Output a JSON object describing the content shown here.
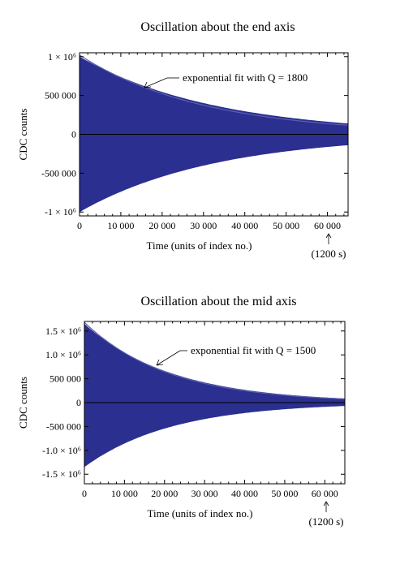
{
  "chart_data": [
    {
      "type": "area",
      "title": "Oscillation about the end axis",
      "xlabel": "Time (units of index no.)",
      "ylabel": "CDC counts",
      "xlim": [
        0,
        65000
      ],
      "ylim": [
        -1050000,
        1050000
      ],
      "x_ticks": [
        {
          "v": 0,
          "label": "0"
        },
        {
          "v": 10000,
          "label": "10 000"
        },
        {
          "v": 20000,
          "label": "20 000"
        },
        {
          "v": 30000,
          "label": "30 000"
        },
        {
          "v": 40000,
          "label": "40 000"
        },
        {
          "v": 50000,
          "label": "50 000"
        },
        {
          "v": 60000,
          "label": "60 000"
        }
      ],
      "y_ticks": [
        {
          "v": 1000000,
          "label": "1 × 10⁶"
        },
        {
          "v": 500000,
          "label": "500 000"
        },
        {
          "v": 0,
          "label": "0"
        },
        {
          "v": -500000,
          "label": "-500 000"
        },
        {
          "v": -1000000,
          "label": "-1 × 10⁶"
        }
      ],
      "series": [
        {
          "name": "",
          "values_envelope_upper": [
            [
              0,
              1000000
            ],
            [
              10000,
              719000
            ],
            [
              20000,
              517000
            ],
            [
              30000,
              372000
            ],
            [
              40000,
              267000
            ],
            [
              50000,
              192000
            ],
            [
              60000,
              138000
            ],
            [
              65000,
              117000
            ]
          ],
          "values_envelope_lower": [
            [
              0,
              -1000000
            ],
            [
              10000,
              -719000
            ],
            [
              20000,
              -517000
            ],
            [
              30000,
              -372000
            ],
            [
              40000,
              -267000
            ],
            [
              50000,
              -192000
            ],
            [
              60000,
              -138000
            ],
            [
              65000,
              -117000
            ]
          ],
          "amp0": 1000000,
          "decay": 33000
        },
        {
          "name": "exponential fit with Q = 1800",
          "fit_amp0": 1020000,
          "fit_decay": 30000
        }
      ],
      "annotations": [
        {
          "text": "exponential fit with Q = 1800",
          "x": 17000,
          "y": 760000
        },
        {
          "text": "(1200 s)",
          "x": 62000,
          "y": -1280000
        }
      ],
      "colors": {
        "fill": "#2b2f8f",
        "fit": "#5a5fb0"
      }
    },
    {
      "type": "area",
      "title": "Oscillation about the mid axis",
      "xlabel": "Time (units of index no.)",
      "ylabel": "CDC counts",
      "xlim": [
        0,
        65000
      ],
      "ylim": [
        -1700000,
        1700000
      ],
      "x_ticks": [
        {
          "v": 0,
          "label": "0"
        },
        {
          "v": 10000,
          "label": "10 000"
        },
        {
          "v": 20000,
          "label": "20 000"
        },
        {
          "v": 30000,
          "label": "30 000"
        },
        {
          "v": 40000,
          "label": "40 000"
        },
        {
          "v": 50000,
          "label": "50 000"
        },
        {
          "v": 60000,
          "label": "60 000"
        }
      ],
      "y_ticks": [
        {
          "v": 1500000,
          "label": "1.5 × 10⁶"
        },
        {
          "v": 1000000,
          "label": "1.0 × 10⁶"
        },
        {
          "v": 500000,
          "label": "500 000"
        },
        {
          "v": 0,
          "label": "0"
        },
        {
          "v": -500000,
          "label": "-500 000"
        },
        {
          "v": -1000000,
          "label": "-1.0 × 10⁶"
        },
        {
          "v": -1500000,
          "label": "-1.5 × 10⁶"
        }
      ],
      "series": [
        {
          "name": "",
          "amp_upper0": 1650000,
          "amp_lower0": -1350000,
          "decay": 22000
        },
        {
          "name": "exponential fit with Q = 1500",
          "fit_amp0": 1680000,
          "fit_decay": 21000
        }
      ],
      "annotations": [
        {
          "text": "exponential fit with Q = 1500",
          "x": 20000,
          "y": 1250000
        },
        {
          "text": "(1200 s)",
          "x": 62000,
          "y": -2050000
        }
      ],
      "colors": {
        "fill": "#2b2f8f",
        "fit": "#5a5fb0"
      }
    }
  ]
}
